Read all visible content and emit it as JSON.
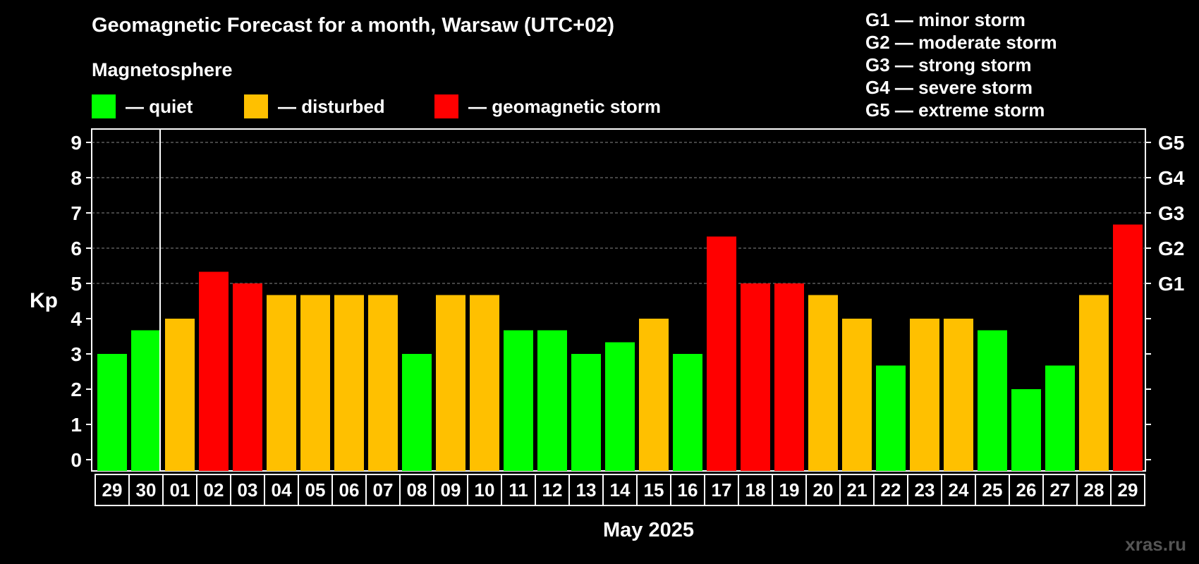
{
  "title": "Geomagnetic Forecast for a month, Warsaw (UTC+02)",
  "section_label": "Magnetosphere",
  "legend": [
    {
      "label": "— quiet",
      "color": "#00ff00"
    },
    {
      "label": "— disturbed",
      "color": "#ffc000"
    },
    {
      "label": "— geomagnetic storm",
      "color": "#ff0000"
    }
  ],
  "storm_scale": [
    "G1 — minor storm",
    "G2 — moderate storm",
    "G3 — strong storm",
    "G4 — severe storm",
    "G5 — extreme storm"
  ],
  "watermark": "xras.ru",
  "chart_data": {
    "type": "bar",
    "ylabel": "Kp",
    "xlabel": "May 2025",
    "ylim": [
      0,
      9
    ],
    "yticks": [
      "0",
      "1",
      "2",
      "3",
      "4",
      "5",
      "6",
      "7",
      "8",
      "9"
    ],
    "right_ticks": [
      {
        "kp": 5,
        "label": "G1"
      },
      {
        "kp": 6,
        "label": "G2"
      },
      {
        "kp": 7,
        "label": "G3"
      },
      {
        "kp": 8,
        "label": "G4"
      },
      {
        "kp": 9,
        "label": "G5"
      }
    ],
    "grid": "dashed horizontal at Kp 5-9",
    "categories": [
      "29",
      "30",
      "01",
      "02",
      "03",
      "04",
      "05",
      "06",
      "07",
      "08",
      "09",
      "10",
      "11",
      "12",
      "13",
      "14",
      "15",
      "16",
      "17",
      "18",
      "19",
      "20",
      "21",
      "22",
      "23",
      "24",
      "25",
      "26",
      "27",
      "28",
      "29"
    ],
    "values": [
      3.0,
      3.67,
      4.0,
      5.33,
      5.0,
      4.67,
      4.67,
      4.67,
      4.67,
      3.0,
      4.67,
      4.67,
      3.67,
      3.67,
      3.0,
      3.33,
      4.0,
      3.0,
      6.33,
      5.0,
      5.0,
      4.67,
      4.0,
      2.67,
      4.0,
      4.0,
      3.67,
      2.0,
      2.67,
      4.67,
      6.67
    ],
    "levels": [
      "quiet",
      "quiet",
      "disturbed",
      "storm",
      "storm",
      "disturbed",
      "disturbed",
      "disturbed",
      "disturbed",
      "quiet",
      "disturbed",
      "disturbed",
      "quiet",
      "quiet",
      "quiet",
      "quiet",
      "disturbed",
      "quiet",
      "storm",
      "storm",
      "storm",
      "disturbed",
      "disturbed",
      "quiet",
      "disturbed",
      "disturbed",
      "quiet",
      "quiet",
      "quiet",
      "disturbed",
      "storm"
    ],
    "level_colors": {
      "quiet": "#00ff00",
      "disturbed": "#ffc000",
      "storm": "#ff0000"
    },
    "month_boundary_after": "30"
  }
}
